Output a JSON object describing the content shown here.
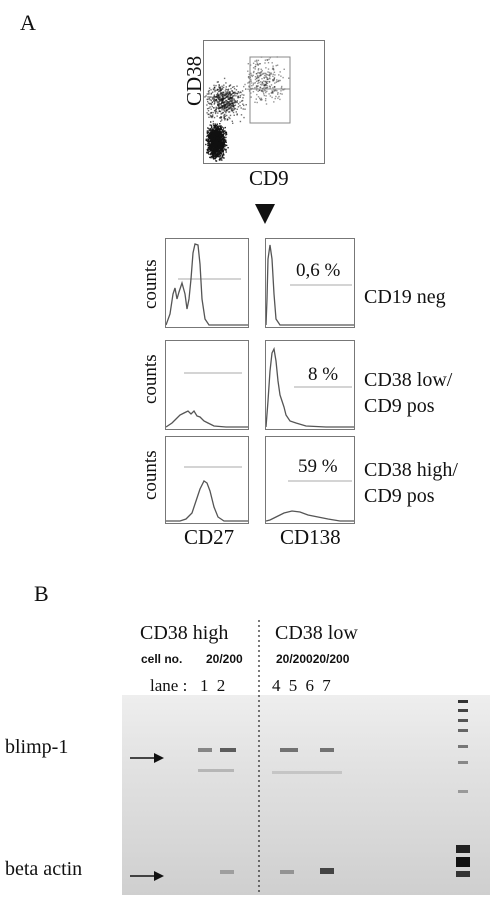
{
  "panel_a": {
    "label": "A",
    "dot_plot": {
      "y_label": "CD38",
      "x_label": "CD9"
    },
    "histograms": {
      "counts_label": "counts",
      "rows": [
        {
          "percent": "0,6 %",
          "population_lines": [
            "CD19 neg"
          ]
        },
        {
          "percent": "8 %",
          "population_lines": [
            "CD38 low/",
            "CD9 pos"
          ]
        },
        {
          "percent": "59 %",
          "population_lines": [
            "CD38 high/",
            "CD9 pos"
          ]
        }
      ],
      "col_labels": [
        "CD27",
        "CD138"
      ]
    }
  },
  "panel_b": {
    "label": "B",
    "group_high": "CD38 high",
    "group_low": "CD38 low",
    "cell_no_label": "cell no.",
    "cell_no_high": "20/200",
    "cell_no_low": "20/20020/200",
    "lane_label": "lane :",
    "lanes_high": "1 2",
    "lanes_low": "4 5 6 7",
    "bands": [
      "blimp-1",
      "beta actin"
    ]
  }
}
